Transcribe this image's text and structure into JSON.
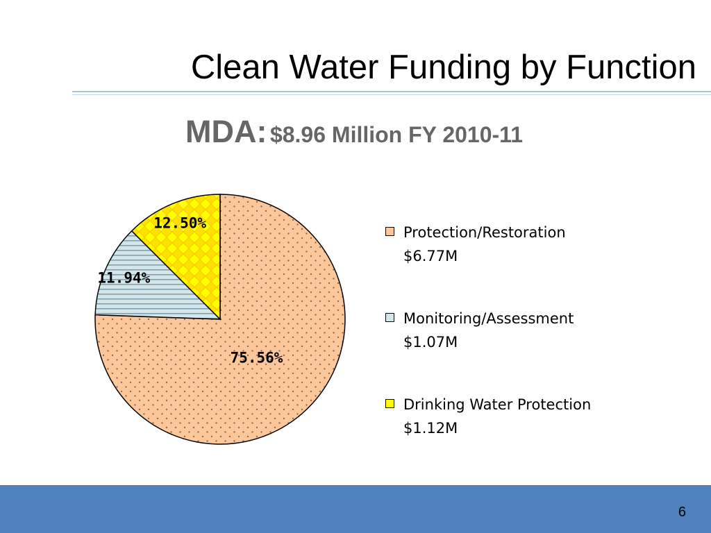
{
  "slide": {
    "title": "Clean Water Funding by Function",
    "page_number": "6"
  },
  "chart_data": {
    "type": "pie",
    "title_prefix": "MDA:",
    "title": "$8.96 Million FY 2010-11",
    "slices": [
      {
        "label": "Protection/Restoration",
        "amount": "$6.77M",
        "value": 75.56,
        "value_label": "75.56%",
        "color": "#fcc89b",
        "pattern": "dots"
      },
      {
        "label": "Monitoring/Assessment",
        "amount": "$1.07M",
        "value": 11.94,
        "value_label": "11.94%",
        "color": "#d4e6ea",
        "pattern": "horizontal-lines"
      },
      {
        "label": "Drinking Water Protection",
        "amount": "$1.12M",
        "value": 12.5,
        "value_label": "12.50%",
        "color": "#ffff00",
        "pattern": "diamonds"
      }
    ],
    "legend_position": "right"
  }
}
